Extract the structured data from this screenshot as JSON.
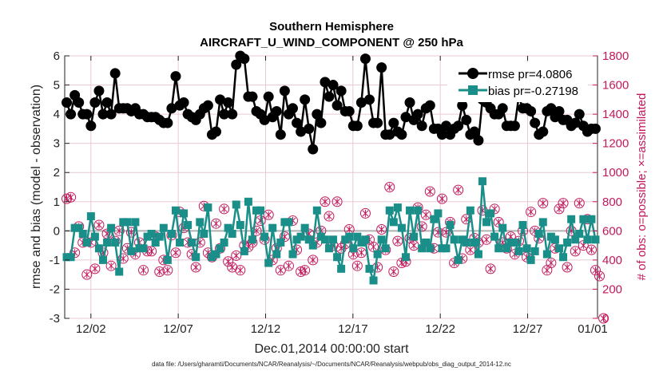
{
  "chart_data": {
    "type": "line",
    "title": "Southern Hemisphere",
    "subtitle": "AIRCRAFT_U_WIND_COMPONENT @ 250 hPa",
    "xlabel": "Dec.01,2014 00:00:00 start",
    "ylabel": "rmse and bias (model - observation)",
    "ylabel_right": "# of obs: o=possible; ×=assimilated",
    "footnote": "data file: /Users/gharamti/Documents/NCAR/Reanalysis/~/Documents/NCAR/Reanalysis/webpub/obs_diag_output_2014-12.nc",
    "xlim": [
      0.5,
      31
    ],
    "ylim": [
      -3,
      6
    ],
    "ylim_right": [
      0,
      1800
    ],
    "x_ticks": [
      {
        "value": 2,
        "label": "12/02"
      },
      {
        "value": 7,
        "label": "12/07"
      },
      {
        "value": 12,
        "label": "12/12"
      },
      {
        "value": 17,
        "label": "12/17"
      },
      {
        "value": 22,
        "label": "12/22"
      },
      {
        "value": 27,
        "label": "12/27"
      },
      {
        "value": 32,
        "label": "01/01"
      }
    ],
    "y_ticks": [
      -3,
      -2,
      -1,
      0,
      1,
      2,
      3,
      4,
      5,
      6
    ],
    "y_ticks_right": [
      0,
      200,
      400,
      600,
      800,
      1000,
      1200,
      1400,
      1600,
      1800
    ],
    "legend": {
      "position": "top-right",
      "entries": [
        "rmse pr=4.0806",
        "bias pr=-0.27198"
      ]
    },
    "colors": {
      "rmse": "#000000",
      "bias": "#1a8f8a",
      "obs": "#c2185b",
      "zero_line": "#b0b0b0",
      "frame": "#222222"
    },
    "series": [
      {
        "name": "rmse",
        "values": [
          4.4,
          4.0,
          4.65,
          4.4,
          4.0,
          4.0,
          3.6,
          4.4,
          4.8,
          4.0,
          4.4,
          4.0,
          5.4,
          4.2,
          4.2,
          4.2,
          4.1,
          4.2,
          4.0,
          4.0,
          3.9,
          3.9,
          3.9,
          3.8,
          3.7,
          3.7,
          4.2,
          5.3,
          4.3,
          4.4,
          4.0,
          3.9,
          3.8,
          4.0,
          4.2,
          4.3,
          3.3,
          3.4,
          4.5,
          4.0,
          4.4,
          4.0,
          5.7,
          6.0,
          5.9,
          4.6,
          4.6,
          4.1,
          4.0,
          3.8,
          4.6,
          3.9,
          4.1,
          3.3,
          4.8,
          4.0,
          4.2,
          3.7,
          3.4,
          4.5,
          3.5,
          2.8,
          4.0,
          3.7,
          5.1,
          4.6,
          5.0,
          4.3,
          4.8,
          4.1,
          4.1,
          3.6,
          3.6,
          4.4,
          5.9,
          4.5,
          3.7,
          3.7,
          5.6,
          3.3,
          3.3,
          3.7,
          3.4,
          3.3,
          3.9,
          4.4,
          3.8,
          4.0,
          3.6,
          4.2,
          4.3,
          3.5,
          3.5,
          3.3,
          3.6,
          3.3,
          3.5,
          3.6,
          4.3,
          3.8,
          3.3,
          3.4,
          3.1,
          4.5,
          4.4,
          4.2,
          4.0,
          4.0,
          4.2,
          3.6,
          3.6,
          3.6,
          4.6,
          4.2,
          4.2,
          4.1,
          3.7,
          3.3,
          3.4,
          4.1,
          4.2,
          3.9,
          4.1,
          3.8,
          3.8,
          3.6,
          3.7,
          4.0,
          3.6,
          3.4,
          3.5,
          3.5
        ]
      },
      {
        "name": "bias",
        "values": [
          -0.9,
          -0.9,
          0.1,
          0.1,
          -0.1,
          -0.4,
          0.5,
          -0.2,
          -0.6,
          -1.0,
          -0.4,
          0.1,
          -0.4,
          -1.4,
          0.3,
          0.3,
          -0.7,
          0.3,
          -0.6,
          -0.6,
          -0.2,
          -0.1,
          -0.4,
          -0.2,
          0.1,
          -1.0,
          -0.1,
          0.7,
          -0.4,
          0.6,
          0.2,
          -0.4,
          -0.9,
          0.3,
          -0.1,
          0.8,
          -0.9,
          -0.8,
          -0.6,
          -0.4,
          0.1,
          -0.1,
          0.9,
          0.2,
          -0.7,
          1.0,
          -0.3,
          0.7,
          0.7,
          -0.2,
          -1.1,
          0.1,
          -0.8,
          -0.4,
          0.3,
          0.3,
          -0.8,
          -0.3,
          -0.2,
          0.1,
          -0.3,
          -0.5,
          0.7,
          -0.2,
          -0.3,
          -0.6,
          -0.3,
          -0.9,
          -1.3,
          -0.3,
          -0.2,
          -0.6,
          -0.2,
          -0.4,
          -0.3,
          -1.3,
          -1.7,
          -0.8,
          -0.3,
          -0.6,
          0.7,
          0.3,
          0.8,
          0.1,
          -0.9,
          0.7,
          -0.2,
          0.7,
          -0.6,
          -0.4,
          -0.6,
          0.4,
          0.6,
          -0.6,
          -0.6,
          0.2,
          -0.3,
          -1.0,
          -0.3,
          -0.4,
          0.7,
          -0.4,
          -0.8,
          1.7,
          0.3,
          0.6,
          -0.2,
          -0.6,
          0.1,
          -0.6,
          -0.4,
          -0.4,
          -0.7,
          0.2,
          -0.6,
          -1.0,
          -0.7,
          -0.1,
          0.3,
          -0.8,
          -0.2,
          -0.3,
          -0.6,
          -0.9,
          -0.4,
          0.4,
          -0.3,
          -0.1,
          0.4,
          -0.3,
          0.4,
          -0.3
        ]
      },
      {
        "name": "obs_possible",
        "values": [
          820,
          830,
          450,
          630,
          520,
          300,
          520,
          340,
          640,
          450,
          580,
          360,
          530,
          600,
          410,
          480,
          590,
          440,
          520,
          330,
          460,
          460,
          560,
          320,
          400,
          330,
          570,
          450,
          730,
          620,
          520,
          440,
          350,
          520,
          770,
          450,
          420,
          650,
          480,
          750,
          390,
          350,
          430,
          330,
          500,
          490,
          520,
          600,
          670,
          540,
          710,
          400,
          480,
          330,
          560,
          360,
          670,
          470,
          320,
          330,
          580,
          400,
          520,
          600,
          800,
          700,
          500,
          800,
          480,
          510,
          610,
          440,
          360,
          450,
          720,
          540,
          490,
          350,
          610,
          470,
          900,
          320,
          530,
          380,
          390,
          550,
          500,
          760,
          630,
          710,
          870,
          480,
          590,
          820,
          590,
          660,
          380,
          880,
          410,
          680,
          470,
          550,
          520,
          740,
          540,
          340,
          750,
          660,
          520,
          480,
          560,
          440,
          530,
          600,
          420,
          730,
          600,
          550,
          790,
          330,
          380,
          480,
          750,
          790,
          350,
          600,
          460,
          790,
          500,
          680,
          470,
          330,
          290,
          0
        ]
      }
    ]
  }
}
